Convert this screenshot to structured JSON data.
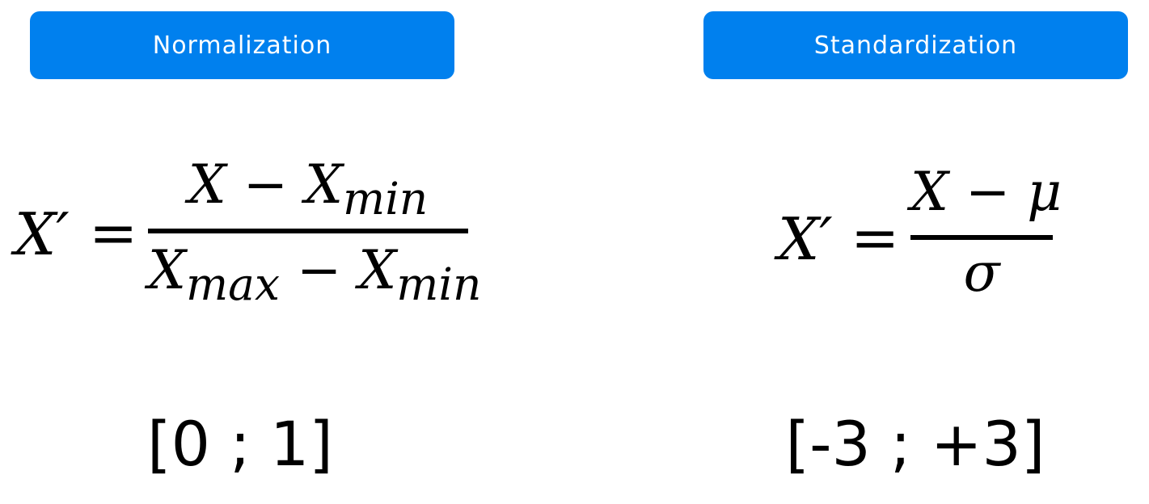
{
  "normalization": {
    "title": "Normalization",
    "formula": {
      "lhs": "X′",
      "equals": "=",
      "numerator": {
        "var": "X",
        "op": "−",
        "var2": "X",
        "sub2": "min"
      },
      "denominator": {
        "var": "X",
        "sub": "max",
        "op": "−",
        "var2": "X",
        "sub2": "min"
      }
    },
    "range": "[0 ; 1]"
  },
  "standardization": {
    "title": "Standardization",
    "formula": {
      "lhs": "X′",
      "equals": "=",
      "numerator": {
        "var": "X",
        "op": "−",
        "var2": "μ"
      },
      "denominator": {
        "var": "σ"
      }
    },
    "range": "[-3 ; +3]"
  },
  "colors": {
    "header_bg": "#0080ee",
    "header_text": "#ffffff",
    "text": "#000000"
  }
}
